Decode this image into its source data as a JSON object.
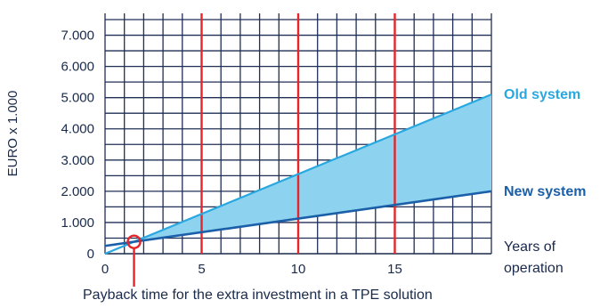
{
  "chart_data": {
    "type": "line",
    "title": "",
    "ylabel": "EURO x 1.000",
    "xlabel": [
      "Years of",
      "operation"
    ],
    "caption": "Payback time for the extra investment in a TPE solution",
    "xlim": [
      0,
      20
    ],
    "ylim": [
      0,
      7700
    ],
    "x_ticks": [
      0,
      5,
      10,
      15
    ],
    "x_tick_labels": [
      "0",
      "5",
      "10",
      "15"
    ],
    "y_ticks": [
      0,
      1000,
      2000,
      3000,
      4000,
      5000,
      6000,
      7000
    ],
    "y_tick_labels": [
      "0",
      "1.000",
      "2.000",
      "3.000",
      "4.000",
      "5.000",
      "6.000",
      "7.000"
    ],
    "grid": true,
    "highlighted_years": [
      5,
      10,
      15
    ],
    "payback_point": {
      "x": 1.5,
      "y": 380
    },
    "series": [
      {
        "name": "Old system",
        "x": [
          0,
          20
        ],
        "y": [
          0,
          5100
        ],
        "color": "#29a8e0"
      },
      {
        "name": "New system",
        "x": [
          0,
          20
        ],
        "y": [
          250,
          2000
        ],
        "color": "#1a5fa8"
      }
    ],
    "colors": {
      "grid": "#1f2f55",
      "highlight": "#e5252a",
      "fill": "#8dd3ef",
      "axis": "#1a2a4a"
    }
  }
}
